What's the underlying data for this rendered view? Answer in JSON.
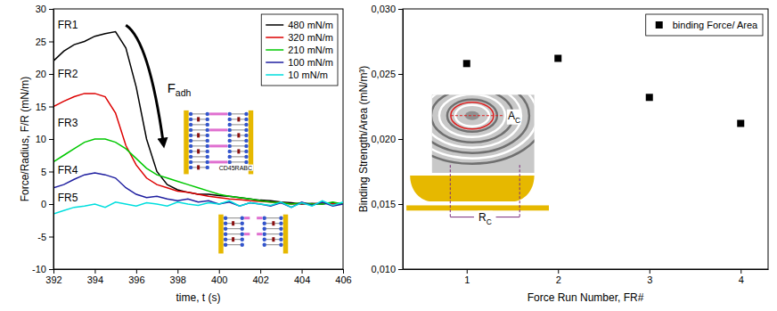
{
  "chart_data": [
    {
      "type": "line",
      "x_label": "time, t (s)",
      "y_label": "Force/Radius, F/R (mN/m)",
      "x": [
        392,
        392.5,
        393,
        393.5,
        394,
        394.5,
        395,
        395.5,
        396,
        396.5,
        397,
        397.5,
        398,
        398.5,
        399,
        399.5,
        400,
        400.5,
        401,
        401.5,
        402,
        402.5,
        403,
        403.5,
        404,
        404.5,
        405,
        405.5,
        406
      ],
      "xlim": [
        392,
        406
      ],
      "xticks": [
        392,
        394,
        396,
        398,
        400,
        402,
        404,
        406
      ],
      "ylim": [
        -10,
        30
      ],
      "yticks": [
        -10,
        -5,
        0,
        5,
        10,
        15,
        20,
        25,
        30
      ],
      "legend": "top-right",
      "series": [
        {
          "name": "480 mN/m",
          "color": "#000000",
          "values": [
            22,
            23.5,
            24.5,
            25,
            25.8,
            26.2,
            26.5,
            24,
            18,
            10,
            5,
            3,
            2.2,
            1.8,
            1.5,
            1.5,
            1.3,
            1.2,
            1,
            0.8,
            0.6,
            0.5,
            0.3,
            0.2,
            0,
            0.1,
            0,
            0.2,
            0
          ]
        },
        {
          "name": "320 mN/m",
          "color": "#dd0000",
          "values": [
            15,
            15.8,
            16.5,
            17,
            17,
            16.5,
            14,
            9,
            6,
            4,
            3,
            2.5,
            2,
            1.8,
            1.5,
            1.2,
            1,
            0.8,
            0.7,
            0.5,
            0.4,
            0.3,
            0.2,
            0,
            0.1,
            0,
            0.2,
            0,
            0
          ]
        },
        {
          "name": "210 mN/m",
          "color": "#00c800",
          "values": [
            6.5,
            7.5,
            8.5,
            9.5,
            10,
            10,
            9.5,
            8.5,
            7,
            5.5,
            4.5,
            4,
            3.5,
            3,
            2.5,
            2,
            1.5,
            1.2,
            1,
            0.8,
            0.5,
            0.3,
            0.2,
            0,
            0.2,
            0,
            0,
            0.3,
            0
          ]
        },
        {
          "name": "100 mN/m",
          "color": "#1f1fa0",
          "values": [
            2.5,
            3,
            3.8,
            4.5,
            4.8,
            4.5,
            4,
            2.5,
            1.5,
            1,
            1.2,
            0.8,
            0.5,
            0.8,
            0.3,
            0.5,
            0,
            0.3,
            -0.3,
            0.2,
            0,
            -0.3,
            0.2,
            -0.5,
            0.3,
            -0.2,
            0.3,
            -0.3,
            0
          ]
        },
        {
          "name": "10 mN/m",
          "color": "#00dede",
          "values": [
            -1.5,
            -1,
            -0.5,
            -0.3,
            0,
            -0.5,
            0.3,
            0,
            -0.3,
            0.2,
            0,
            -0.3,
            0.3,
            0,
            -0.2,
            0.2,
            0,
            0.5,
            -0.3,
            0.2,
            0,
            -0.2,
            0.3,
            -0.5,
            0.2,
            -0.3,
            0.5,
            -0.2,
            0.3
          ]
        }
      ],
      "annotations": [
        {
          "text": "FR1",
          "x": 392.2,
          "y": 27.5
        },
        {
          "text": "FR2",
          "x": 392.2,
          "y": 20
        },
        {
          "text": "FR3",
          "x": 392.2,
          "y": 12.5
        },
        {
          "text": "FR4",
          "x": 392.2,
          "y": 5.2
        },
        {
          "text": "FR5",
          "x": 392.2,
          "y": 1
        },
        {
          "text": "F",
          "sub": "adh",
          "x": 397.5,
          "y": 18
        },
        {
          "text": "CD45RABC",
          "x": 400,
          "y": 5.6
        }
      ]
    },
    {
      "type": "scatter",
      "x_label": "Force Run Number, FR#",
      "y_label": "Binding Strength/Area (mN/m³)",
      "x": [
        1,
        2,
        3,
        4
      ],
      "xlim": [
        0.3,
        4.3
      ],
      "xticks": [
        1,
        2,
        3,
        4
      ],
      "ylim": [
        0.01,
        0.03
      ],
      "yticks": [
        {
          "value": 0.01,
          "label": "0,010"
        },
        {
          "value": 0.015,
          "label": "0,015"
        },
        {
          "value": 0.02,
          "label": "0,020"
        },
        {
          "value": 0.025,
          "label": "0,025"
        },
        {
          "value": 0.03,
          "label": "0,030"
        }
      ],
      "legend": "top-right",
      "series": [
        {
          "name": "binding Force/ Area",
          "color": "#000000",
          "marker": "square",
          "values": [
            0.0258,
            0.0262,
            0.0232,
            0.0212
          ]
        }
      ],
      "annotations": [
        {
          "text": "A",
          "sub": "C",
          "x": 1.45,
          "y": 0.0218
        },
        {
          "text": "R",
          "sub": "C",
          "x": 1.13,
          "y": 0.014
        }
      ]
    }
  ]
}
